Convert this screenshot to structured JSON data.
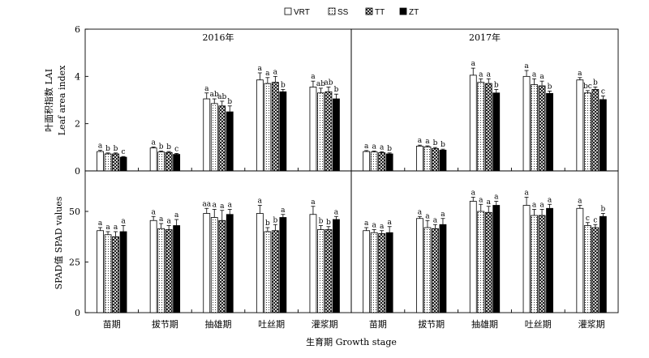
{
  "figure": {
    "x_label": "生育期 Growth stage",
    "top_y_label_cn": "叶面积指数 LAI",
    "top_y_label_en": "Leaf area index",
    "bottom_y_label": "SPAD值 SPAD values"
  },
  "chart_data": [
    {
      "type": "bar",
      "title": "2016年",
      "ylim": [
        0,
        6
      ],
      "yticks": [
        0,
        2,
        4,
        6
      ],
      "categories": [
        "苗期",
        "拔节期",
        "抽雄期",
        "吐丝期",
        "灌浆期"
      ],
      "legend": [
        "VRT",
        "SS",
        "TT",
        "ZT"
      ],
      "series": [
        {
          "name": "VRT",
          "values": [
            0.82,
            0.97,
            3.05,
            3.85,
            3.55
          ],
          "errors": [
            0.05,
            0.04,
            0.25,
            0.3,
            0.25
          ],
          "labels": [
            "a",
            "a",
            "a",
            "a",
            "a"
          ]
        },
        {
          "name": "SS",
          "values": [
            0.72,
            0.8,
            2.85,
            3.7,
            3.3
          ],
          "errors": [
            0.04,
            0.04,
            0.2,
            0.25,
            0.2
          ],
          "labels": [
            "b",
            "b",
            "ab",
            "a",
            "ab"
          ]
        },
        {
          "name": "TT",
          "values": [
            0.72,
            0.78,
            2.75,
            3.75,
            3.35
          ],
          "errors": [
            0.04,
            0.04,
            0.2,
            0.25,
            0.2
          ],
          "labels": [
            "b",
            "b",
            "ab",
            "a",
            "ab"
          ]
        },
        {
          "name": "ZT",
          "values": [
            0.58,
            0.7,
            2.5,
            3.35,
            3.05
          ],
          "errors": [
            0.03,
            0.04,
            0.25,
            0.1,
            0.2
          ],
          "labels": [
            "c",
            "c",
            "b",
            "b",
            "b"
          ]
        }
      ]
    },
    {
      "type": "bar",
      "title": "2017年",
      "ylim": [
        0,
        6
      ],
      "yticks": [
        0,
        2,
        4,
        6
      ],
      "categories": [
        "苗期",
        "拔节期",
        "抽雄期",
        "吐丝期",
        "灌浆期"
      ],
      "legend": [
        "VRT",
        "SS",
        "TT",
        "ZT"
      ],
      "series": [
        {
          "name": "VRT",
          "values": [
            0.82,
            1.05,
            4.05,
            4.0,
            3.85
          ],
          "errors": [
            0.04,
            0.04,
            0.3,
            0.25,
            0.1
          ],
          "labels": [
            "a",
            "a",
            "a",
            "a",
            "a"
          ]
        },
        {
          "name": "SS",
          "values": [
            0.8,
            1.02,
            3.75,
            3.65,
            3.3
          ],
          "errors": [
            0.04,
            0.04,
            0.15,
            0.25,
            0.1
          ],
          "labels": [
            "a",
            "a",
            "a",
            "a",
            "bc"
          ]
        },
        {
          "name": "TT",
          "values": [
            0.77,
            0.95,
            3.7,
            3.6,
            3.45
          ],
          "errors": [
            0.04,
            0.04,
            0.2,
            0.2,
            0.1
          ],
          "labels": [
            "a",
            "b",
            "a",
            "a",
            "b"
          ]
        },
        {
          "name": "ZT",
          "values": [
            0.72,
            0.88,
            3.3,
            3.28,
            3.02
          ],
          "errors": [
            0.04,
            0.04,
            0.15,
            0.1,
            0.15
          ],
          "labels": [
            "b",
            "b",
            "b",
            "b",
            "c"
          ]
        }
      ]
    },
    {
      "type": "bar",
      "title": "",
      "ylim": [
        0,
        70
      ],
      "yticks": [
        0,
        25,
        50
      ],
      "categories": [
        "苗期",
        "拔节期",
        "抽雄期",
        "吐丝期",
        "灌浆期"
      ],
      "legend": [
        "VRT",
        "SS",
        "TT",
        "ZT"
      ],
      "series": [
        {
          "name": "VRT",
          "values": [
            40.5,
            45.5,
            49.0,
            49.0,
            48.5
          ],
          "errors": [
            1.5,
            2.0,
            2.5,
            4.0,
            4.0
          ],
          "labels": [
            "a",
            "a",
            "aa",
            "a",
            "a"
          ]
        },
        {
          "name": "SS",
          "values": [
            38.5,
            41.5,
            47.0,
            40.0,
            41.0
          ],
          "errors": [
            1.5,
            2.5,
            4.0,
            2.0,
            2.0
          ],
          "labels": [
            "a",
            "a",
            "a",
            "b",
            "b"
          ]
        },
        {
          "name": "TT",
          "values": [
            37.5,
            41.0,
            45.5,
            40.5,
            41.0
          ],
          "errors": [
            2.5,
            2.0,
            5.0,
            3.0,
            1.5
          ],
          "labels": [
            "a",
            "a",
            "a",
            "b",
            "b"
          ]
        },
        {
          "name": "ZT",
          "values": [
            40.0,
            43.0,
            48.5,
            47.0,
            46.0
          ],
          "errors": [
            3.0,
            3.0,
            2.5,
            1.5,
            1.5
          ],
          "labels": [
            "a",
            "a",
            "a",
            "a",
            "a"
          ]
        }
      ]
    },
    {
      "type": "bar",
      "title": "",
      "ylim": [
        0,
        70
      ],
      "yticks": [
        0,
        25,
        50
      ],
      "categories": [
        "苗期",
        "拔节期",
        "抽雄期",
        "吐丝期",
        "灌浆期"
      ],
      "legend": [
        "VRT",
        "SS",
        "TT",
        "ZT"
      ],
      "series": [
        {
          "name": "VRT",
          "values": [
            40.5,
            46.5,
            55.0,
            53.0,
            51.5
          ],
          "errors": [
            1.5,
            1.0,
            2.0,
            4.0,
            1.5
          ],
          "labels": [
            "a",
            "a",
            "a",
            "a",
            "a"
          ]
        },
        {
          "name": "SS",
          "values": [
            39.5,
            42.0,
            50.0,
            48.0,
            43.0
          ],
          "errors": [
            1.5,
            3.5,
            3.5,
            3.0,
            1.5
          ],
          "labels": [
            "a",
            "a",
            "a",
            "a",
            "c"
          ]
        },
        {
          "name": "TT",
          "values": [
            39.0,
            41.5,
            49.5,
            48.0,
            42.0
          ],
          "errors": [
            1.5,
            2.0,
            3.0,
            3.0,
            1.5
          ],
          "labels": [
            "a",
            "a",
            "a",
            "a",
            "c"
          ]
        },
        {
          "name": "ZT",
          "values": [
            39.5,
            43.5,
            53.0,
            51.5,
            47.5
          ],
          "errors": [
            3.0,
            3.0,
            2.0,
            2.0,
            1.5
          ],
          "labels": [
            "a",
            "a",
            "a",
            "a",
            "b"
          ]
        }
      ]
    }
  ]
}
